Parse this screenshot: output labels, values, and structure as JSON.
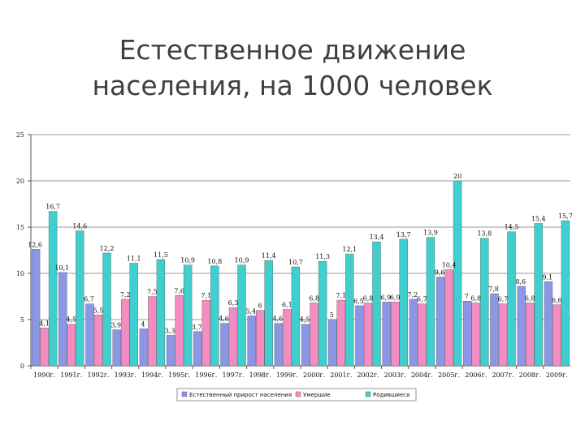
{
  "slide": {
    "title_line1": "Естественное движение",
    "title_line2": "населения, на 1000 человек"
  },
  "chart_data": {
    "type": "bar",
    "title": "Естественное движение населения, на 1000 человек",
    "categories": [
      "1990г.",
      "1991г.",
      "1992г.",
      "1993г.",
      "1994г.",
      "1995г.",
      "1996г.",
      "1997г.",
      "1998г.",
      "1999г.",
      "2000г.",
      "2001г.",
      "2002г.",
      "2003г.",
      "2004г.",
      "2005г.",
      "2006г.",
      "2007г.",
      "2008г.",
      "2009г."
    ],
    "series": [
      {
        "name": "Естественный прирост населения",
        "color": "#8c96e6",
        "values": [
          12.6,
          10.1,
          6.7,
          3.9,
          4,
          3.3,
          3.7,
          4.6,
          5.4,
          4.6,
          4.5,
          5,
          6.5,
          6.9,
          7.2,
          9.6,
          7,
          7.8,
          8.6,
          9.1
        ],
        "labels": [
          "12,6",
          "10,1",
          "6,7",
          "3,9",
          "4",
          "3,3",
          "3,7",
          "4,6",
          "5,4",
          "4,6",
          "4,5",
          "5",
          "6,5",
          "6,9",
          "7,2",
          "9,6",
          "7",
          "7,8",
          "8,6",
          "9,1"
        ]
      },
      {
        "name": "Умершие",
        "color": "#f28cc2",
        "values": [
          4.1,
          4.5,
          5.5,
          7.2,
          7.5,
          7.6,
          7.1,
          6.3,
          6,
          6.1,
          6.8,
          7.1,
          6.8,
          6.9,
          6.7,
          10.4,
          6.8,
          6.7,
          6.8,
          6.6
        ],
        "labels": [
          "4,1",
          "4,5",
          "5,5",
          "7,2",
          "7,5",
          "7,6",
          "7,1",
          "6,3",
          "6",
          "6,1",
          "6,8",
          "7,1",
          "6,8",
          "6,9",
          "6,7",
          "10,4",
          "6,8",
          "6,7",
          "6,8",
          "6,6"
        ]
      },
      {
        "name": "Родившиеся",
        "color": "#3fcfcf",
        "values": [
          16.7,
          14.6,
          12.2,
          11.1,
          11.5,
          10.9,
          10.8,
          10.9,
          11.4,
          10.7,
          11.3,
          12.1,
          13.4,
          13.7,
          13.9,
          20,
          13.8,
          14.5,
          15.4,
          15.7
        ],
        "labels": [
          "16,7",
          "14,6",
          "12,2",
          "11,1",
          "11,5",
          "10,9",
          "10,8",
          "10,9",
          "11,4",
          "10,7",
          "11,3",
          "12,1",
          "13,4",
          "13,7",
          "13,9",
          "20",
          "13,8",
          "14,5",
          "15,4",
          "15,7"
        ]
      }
    ],
    "y_ticks": [
      "0",
      "5",
      "10",
      "15",
      "20",
      "25"
    ],
    "ylim": [
      0,
      25
    ],
    "grid": true,
    "legend_position": "bottom",
    "xlabel": "",
    "ylabel": ""
  }
}
